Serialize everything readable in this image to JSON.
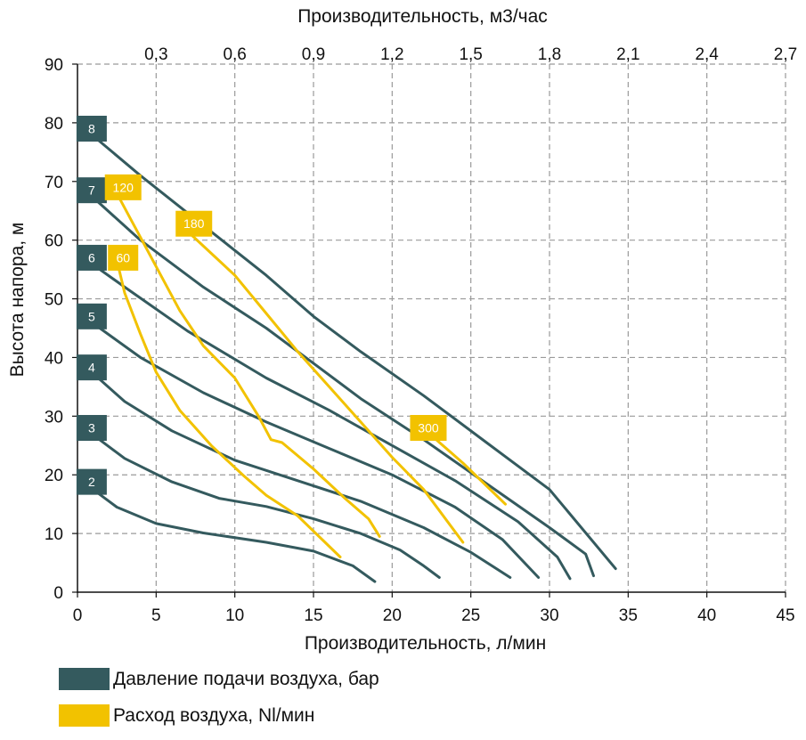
{
  "chart_data": {
    "type": "line",
    "title": "",
    "xlabel": "Производительность, л/мин",
    "ylabel": "Высота напора, м",
    "x2label": "Производительность, м3/час",
    "xlim": [
      0,
      45
    ],
    "ylim": [
      0,
      90
    ],
    "x_ticks": [
      "0",
      "5",
      "10",
      "15",
      "20",
      "25",
      "30",
      "35",
      "40",
      "45"
    ],
    "y_ticks": [
      "0",
      "10",
      "20",
      "30",
      "40",
      "50",
      "60",
      "70",
      "80",
      "90"
    ],
    "x2_ticks": [
      "0,3",
      "0,6",
      "0,9",
      "1,2",
      "1,5",
      "1,8",
      "2,1",
      "2,4",
      "2,7"
    ],
    "x2_tick_positions_lmin": [
      5,
      10,
      15,
      20,
      25,
      30,
      35,
      40,
      45
    ],
    "grid": true,
    "colors": {
      "pressure": "#345a5e",
      "air": "#f2c200",
      "grid": "#9a9a9a"
    },
    "pressure_series": [
      {
        "name": "2",
        "values": [
          [
            0.9,
            17.7
          ],
          [
            2.5,
            14.5
          ],
          [
            5,
            11.7
          ],
          [
            8,
            10.1
          ],
          [
            12,
            8.5
          ],
          [
            15,
            7
          ],
          [
            17.5,
            4.5
          ],
          [
            18.9,
            1.8
          ]
        ],
        "label_at": [
          0.9,
          18.8
        ]
      },
      {
        "name": "3",
        "values": [
          [
            0.9,
            27
          ],
          [
            3,
            22.8
          ],
          [
            6,
            18.8
          ],
          [
            9,
            16
          ],
          [
            12,
            14.6
          ],
          [
            15,
            12.5
          ],
          [
            18,
            10
          ],
          [
            20.5,
            7.2
          ],
          [
            22,
            4.5
          ],
          [
            23,
            2.5
          ]
        ],
        "label_at": [
          0.9,
          28
        ]
      },
      {
        "name": "4",
        "values": [
          [
            0.9,
            37.5
          ],
          [
            3,
            32.5
          ],
          [
            6,
            27.5
          ],
          [
            10,
            22.5
          ],
          [
            14,
            19
          ],
          [
            18,
            15.5
          ],
          [
            22,
            11
          ],
          [
            25,
            6.8
          ],
          [
            27.5,
            2.5
          ]
        ],
        "label_at": [
          0.9,
          38.3
        ]
      },
      {
        "name": "5",
        "values": [
          [
            0.9,
            46
          ],
          [
            4,
            40
          ],
          [
            8,
            34
          ],
          [
            12,
            29
          ],
          [
            16,
            24.5
          ],
          [
            20,
            20
          ],
          [
            24,
            14.5
          ],
          [
            27,
            9
          ],
          [
            29.3,
            2.5
          ]
        ],
        "label_at": [
          0.9,
          47
        ]
      },
      {
        "name": "6",
        "values": [
          [
            0.9,
            56
          ],
          [
            3,
            52
          ],
          [
            7,
            44.5
          ],
          [
            12,
            36.5
          ],
          [
            16,
            31
          ],
          [
            20,
            25
          ],
          [
            24,
            19
          ],
          [
            28,
            12
          ],
          [
            30.5,
            6
          ],
          [
            31.3,
            2.3
          ]
        ],
        "label_at": [
          0.9,
          57
        ]
      },
      {
        "name": "7",
        "values": [
          [
            0.9,
            67.5
          ],
          [
            4,
            60
          ],
          [
            8,
            52
          ],
          [
            12,
            45
          ],
          [
            14.5,
            40
          ],
          [
            18,
            33
          ],
          [
            22,
            26
          ],
          [
            26,
            18.5
          ],
          [
            30,
            11
          ],
          [
            32.3,
            6.5
          ],
          [
            32.8,
            2.8
          ]
        ],
        "label_at": [
          0.9,
          68.5
        ]
      },
      {
        "name": "8",
        "values": [
          [
            0.9,
            78
          ],
          [
            4,
            71
          ],
          [
            8,
            62.5
          ],
          [
            12,
            54
          ],
          [
            15,
            47
          ],
          [
            18,
            41
          ],
          [
            22,
            33.5
          ],
          [
            26,
            25.5
          ],
          [
            30,
            17.5
          ],
          [
            34.2,
            4
          ]
        ],
        "label_at": [
          0.9,
          79
        ]
      }
    ],
    "air_series": [
      {
        "name": "60",
        "values": [
          [
            2.6,
            55.5
          ],
          [
            3,
            51
          ],
          [
            4,
            44
          ],
          [
            5,
            37.5
          ],
          [
            6.5,
            31
          ],
          [
            8.5,
            25
          ],
          [
            10.5,
            20
          ],
          [
            12,
            16.5
          ],
          [
            14,
            13
          ],
          [
            16.7,
            6
          ]
        ],
        "label_at": [
          2.9,
          57
        ]
      },
      {
        "name": "120",
        "values": [
          [
            2.6,
            67.5
          ],
          [
            3.5,
            63
          ],
          [
            5,
            55.5
          ],
          [
            6.5,
            48
          ],
          [
            8,
            42
          ],
          [
            10,
            36.5
          ],
          [
            11.5,
            30
          ],
          [
            12.3,
            26
          ],
          [
            13,
            25.5
          ],
          [
            15,
            21
          ],
          [
            17,
            16
          ],
          [
            18.5,
            12.5
          ],
          [
            19.2,
            9.5
          ]
        ],
        "label_at": [
          2.9,
          69
        ]
      },
      {
        "name": "180",
        "values": [
          [
            7.2,
            61
          ],
          [
            10,
            54
          ],
          [
            12,
            47.5
          ],
          [
            14,
            41
          ],
          [
            16,
            35
          ],
          [
            18,
            29
          ],
          [
            20,
            23
          ],
          [
            22,
            17.5
          ],
          [
            24.5,
            8.5
          ]
        ],
        "label_at": [
          7.4,
          62.8
        ]
      },
      {
        "name": "300",
        "values": [
          [
            22.8,
            26
          ],
          [
            24.5,
            22
          ],
          [
            27.2,
            15
          ]
        ],
        "label_at": [
          22.3,
          28
        ]
      }
    ]
  },
  "legend": {
    "pressure_label": "Давление подачи воздуха, бар",
    "air_label": "Расход воздуха, Nl/мин"
  }
}
